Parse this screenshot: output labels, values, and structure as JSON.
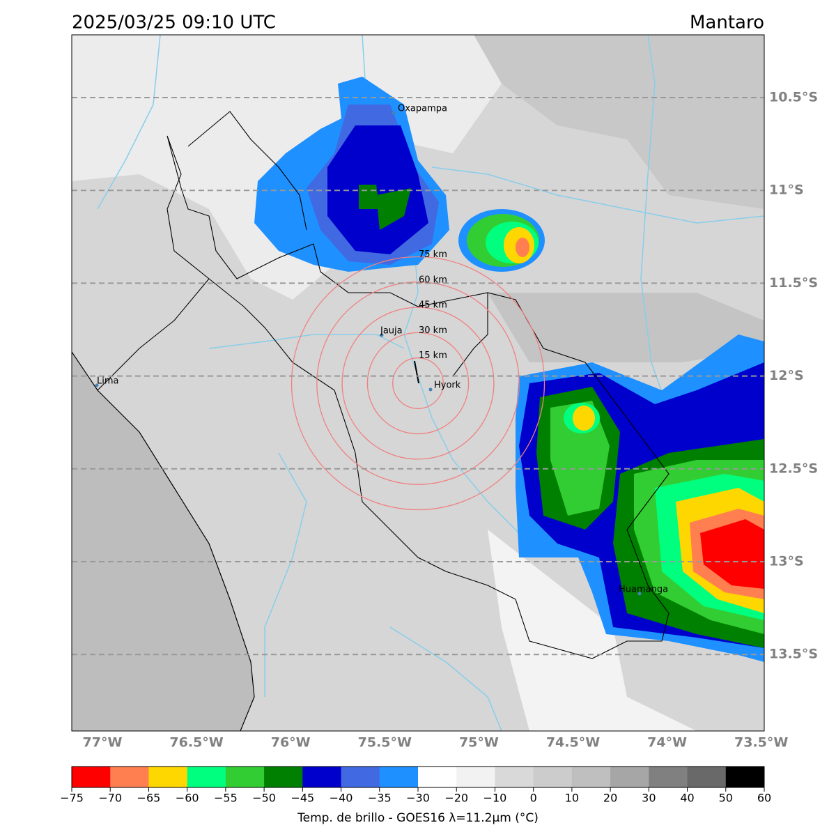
{
  "title": "2025/03/25 09:10 UTC",
  "region": "Mantaro",
  "lat_labels": [
    "10.5°S",
    "11°S",
    "11.5°S",
    "12°S",
    "12.5°S",
    "13°S",
    "13.5°S"
  ],
  "lon_labels": [
    "77°W",
    "76.5°W",
    "76°W",
    "75.5°W",
    "75°W",
    "74.5°W",
    "74°W",
    "73.5°W"
  ],
  "places": [
    "Oxapampa",
    "Jauja",
    "Hyork",
    "Lima",
    "Huamanga"
  ],
  "rings": [
    "15 km",
    "30 km",
    "45 km",
    "60 km",
    "75 km"
  ],
  "colorbar": {
    "ticks": [
      {
        "value": -75,
        "label": "−75"
      },
      {
        "value": -70,
        "label": "−70"
      },
      {
        "value": -65,
        "label": "−65"
      },
      {
        "value": -60,
        "label": "−60"
      },
      {
        "value": -55,
        "label": "−55"
      },
      {
        "value": -50,
        "label": "−50"
      },
      {
        "value": -45,
        "label": "−45"
      },
      {
        "value": -40,
        "label": "−40"
      },
      {
        "value": -35,
        "label": "−35"
      },
      {
        "value": -30,
        "label": "−30"
      },
      {
        "value": -20,
        "label": "−20"
      },
      {
        "value": -10,
        "label": "−10"
      },
      0,
      10,
      20,
      30,
      40,
      50,
      60
    ],
    "colors": [
      "#ff0000",
      "#ff7f50",
      "#ffd700",
      "#00ff7f",
      "#32cd32",
      "#008000",
      "#0000cd",
      "#4169e1",
      "#1e90ff",
      "#ffffff",
      "#f2f2f2",
      "#d9d9d9",
      "#cccccc",
      "#bfbfbf",
      "#a6a6a6",
      "#808080",
      "#696969",
      "#000000"
    ],
    "label": "Temp. de brillo - GOES16 λ=11.2μm (°C)"
  }
}
